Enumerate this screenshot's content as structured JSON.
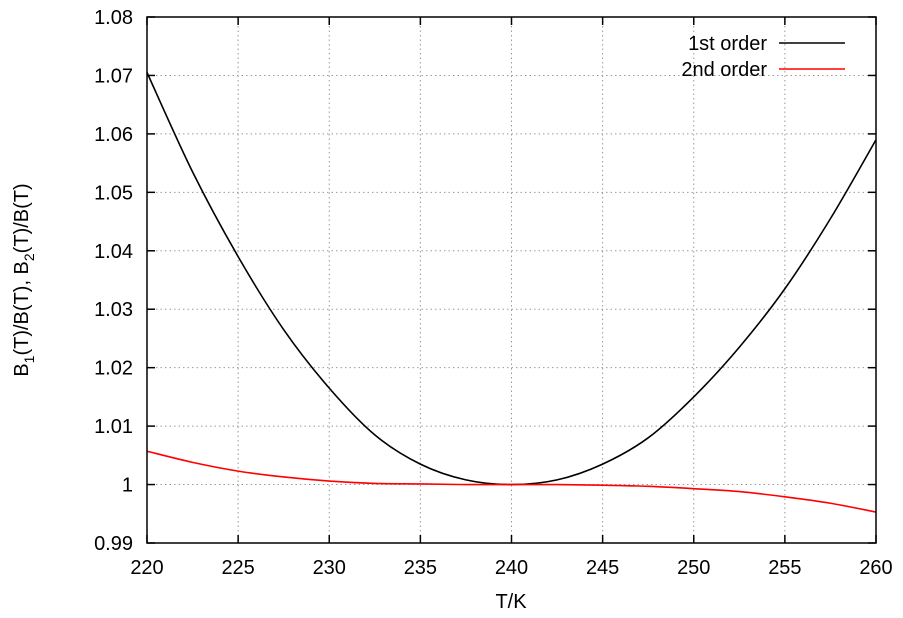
{
  "chart_data": {
    "type": "line",
    "xlabel": "T/K",
    "ylabel": {
      "parts": [
        "B",
        "1",
        "(T)/B(T), B",
        "2",
        "(T)/B(T)"
      ],
      "text": "B1(T)/B(T), B2(T)/B(T)"
    },
    "xlim": [
      220,
      260
    ],
    "ylim": [
      0.99,
      1.08
    ],
    "x_ticks": [
      220,
      225,
      230,
      235,
      240,
      245,
      250,
      255,
      260
    ],
    "y_ticks": [
      0.99,
      1,
      1.01,
      1.02,
      1.03,
      1.04,
      1.05,
      1.06,
      1.07,
      1.08
    ],
    "x_tick_labels": [
      "220",
      "225",
      "230",
      "235",
      "240",
      "245",
      "250",
      "255",
      "260"
    ],
    "y_tick_labels": [
      "0.99",
      "1",
      "1.01",
      "1.02",
      "1.03",
      "1.04",
      "1.05",
      "1.06",
      "1.07",
      "1.08"
    ],
    "grid": true,
    "legend_position": "top-right",
    "series": [
      {
        "name": "1st order",
        "color": "#000000",
        "x": [
          220,
          222.5,
          225,
          227.5,
          230,
          232.5,
          235,
          237.5,
          240,
          242.5,
          245,
          247.5,
          250,
          252.5,
          255,
          257.5,
          260
        ],
        "y": [
          1.0705,
          1.0535,
          1.039,
          1.0265,
          1.0165,
          1.0085,
          1.0035,
          1.0008,
          1.0,
          1.0008,
          1.0035,
          1.008,
          1.015,
          1.0235,
          1.0335,
          1.0455,
          1.059
        ]
      },
      {
        "name": "2nd order",
        "color": "#ff0000",
        "x": [
          220,
          222.5,
          225,
          227.5,
          230,
          232.5,
          235,
          237.5,
          240,
          242.5,
          245,
          247.5,
          250,
          252.5,
          255,
          257.5,
          260
        ],
        "y": [
          1.0057,
          1.0038,
          1.0023,
          1.0013,
          1.0006,
          1.0002,
          1.0001,
          1.0,
          1.0,
          1.0,
          0.9999,
          0.9997,
          0.9993,
          0.9988,
          0.9979,
          0.9968,
          0.9953
        ]
      }
    ]
  }
}
